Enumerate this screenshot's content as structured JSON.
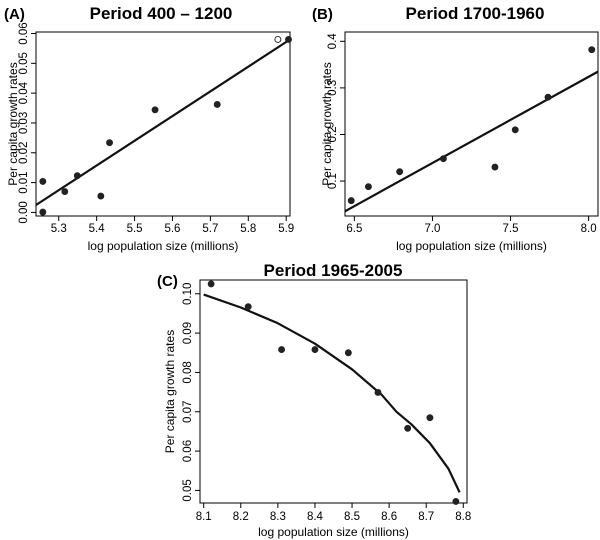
{
  "chart_data": [
    {
      "type": "scatter",
      "panel_label": "(A)",
      "title": "Period 400 – 1200",
      "xlabel": "log population size (millions)",
      "ylabel": "Per capita growth rates",
      "xlim": [
        5.24,
        5.91
      ],
      "ylim": [
        -0.0012,
        0.0605
      ],
      "xticks": [
        5.3,
        5.4,
        5.5,
        5.6,
        5.7,
        5.8,
        5.9
      ],
      "xtick_labels": [
        "5.3",
        "5.4",
        "5.5",
        "5.6",
        "5.7",
        "5.8",
        "5.9"
      ],
      "yticks": [
        0.0,
        0.01,
        0.02,
        0.03,
        0.04,
        0.05,
        0.06
      ],
      "ytick_labels": [
        "0.00",
        "0.01",
        "0.02",
        "0.03",
        "0.04",
        "0.05",
        "0.06"
      ],
      "points": [
        {
          "x": 5.258,
          "y": 0.0104,
          "open": false
        },
        {
          "x": 5.258,
          "y": 0.0001,
          "open": false
        },
        {
          "x": 5.316,
          "y": 0.007,
          "open": false
        },
        {
          "x": 5.349,
          "y": 0.0123,
          "open": false
        },
        {
          "x": 5.411,
          "y": 0.0055,
          "open": false
        },
        {
          "x": 5.434,
          "y": 0.0234,
          "open": false
        },
        {
          "x": 5.554,
          "y": 0.0344,
          "open": false
        },
        {
          "x": 5.718,
          "y": 0.0362,
          "open": false
        },
        {
          "x": 5.878,
          "y": 0.058,
          "open": true
        },
        {
          "x": 5.906,
          "y": 0.058,
          "open": false
        }
      ],
      "fit": {
        "type": "linear",
        "x": [
          5.24,
          5.91
        ],
        "y": [
          0.0025,
          0.058
        ]
      }
    },
    {
      "type": "scatter",
      "panel_label": "(B)",
      "title": "Period 1700-1960",
      "xlabel": "log population size (millions)",
      "ylabel": "Per capita growth rates",
      "xlim": [
        6.44,
        8.06
      ],
      "ylim": [
        0.025,
        0.42
      ],
      "xticks": [
        6.5,
        7.0,
        7.5,
        8.0
      ],
      "xtick_labels": [
        "6.5",
        "7.0",
        "7.5",
        "8.0"
      ],
      "yticks": [
        0.1,
        0.2,
        0.3,
        0.4
      ],
      "ytick_labels": [
        "0.1",
        "0.2",
        "0.3",
        "0.4"
      ],
      "points": [
        {
          "x": 6.48,
          "y": 0.058
        },
        {
          "x": 6.59,
          "y": 0.088
        },
        {
          "x": 6.79,
          "y": 0.12
        },
        {
          "x": 7.07,
          "y": 0.148
        },
        {
          "x": 7.4,
          "y": 0.13
        },
        {
          "x": 7.53,
          "y": 0.21
        },
        {
          "x": 7.74,
          "y": 0.28
        },
        {
          "x": 8.02,
          "y": 0.382
        }
      ],
      "fit": {
        "type": "linear",
        "x": [
          6.44,
          8.06
        ],
        "y": [
          0.035,
          0.335
        ]
      }
    },
    {
      "type": "scatter",
      "panel_label": "(C)",
      "title": "Period 1965-2005",
      "xlabel": "log population size (millions)",
      "ylabel": "Per capita growth rates",
      "xlim": [
        8.09,
        8.81
      ],
      "ylim": [
        0.0468,
        0.1035
      ],
      "xticks": [
        8.1,
        8.2,
        8.3,
        8.4,
        8.5,
        8.6,
        8.7,
        8.8
      ],
      "xtick_labels": [
        "8.1",
        "8.2",
        "8.3",
        "8.4",
        "8.5",
        "8.6",
        "8.7",
        "8.8"
      ],
      "yticks": [
        0.05,
        0.06,
        0.07,
        0.08,
        0.09,
        0.1
      ],
      "ytick_labels": [
        "0.05",
        "0.06",
        "0.07",
        "0.08",
        "0.09",
        "0.10"
      ],
      "points": [
        {
          "x": 8.12,
          "y": 0.1025
        },
        {
          "x": 8.22,
          "y": 0.0967
        },
        {
          "x": 8.31,
          "y": 0.0858
        },
        {
          "x": 8.4,
          "y": 0.0858
        },
        {
          "x": 8.49,
          "y": 0.085
        },
        {
          "x": 8.57,
          "y": 0.0749
        },
        {
          "x": 8.65,
          "y": 0.0658
        },
        {
          "x": 8.71,
          "y": 0.0685
        },
        {
          "x": 8.78,
          "y": 0.0472
        }
      ],
      "fit": {
        "type": "curve",
        "x": [
          8.1,
          8.2,
          8.3,
          8.4,
          8.5,
          8.58,
          8.62,
          8.66,
          8.71,
          8.76,
          8.79
        ],
        "y": [
          0.0998,
          0.0965,
          0.0925,
          0.0873,
          0.0808,
          0.0743,
          0.07,
          0.0668,
          0.062,
          0.0555,
          0.0495
        ]
      }
    }
  ]
}
